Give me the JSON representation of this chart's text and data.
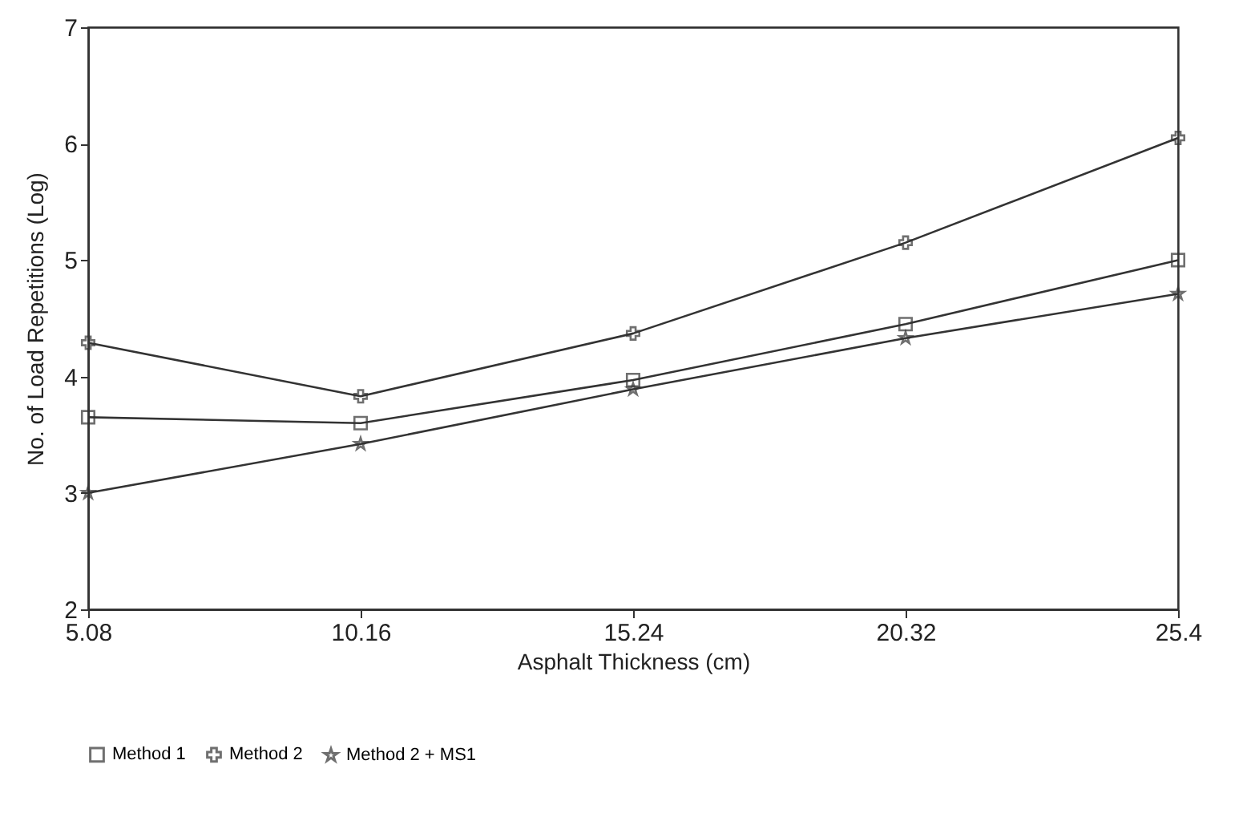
{
  "chart_data": {
    "type": "line",
    "xlabel": "Asphalt Thickness (cm)",
    "ylabel": "No. of Load Repetitions (Log)",
    "x": [
      5.08,
      10.16,
      15.24,
      20.32,
      25.4
    ],
    "xlim": [
      5.08,
      25.4
    ],
    "xticks": [
      5.08,
      10.16,
      15.24,
      20.32,
      25.4
    ],
    "ylim": [
      2,
      7
    ],
    "yticks": [
      2,
      3,
      4,
      5,
      6,
      7
    ],
    "grid": false,
    "legend": "bottom",
    "line_style": "solid",
    "series": [
      {
        "name": "Method 1",
        "color": "#333333",
        "marker": "square",
        "values": [
          3.65,
          3.6,
          3.97,
          4.45,
          5.0
        ]
      },
      {
        "name": "Method 2",
        "color": "#333333",
        "marker": "cross",
        "values": [
          4.29,
          3.83,
          4.37,
          5.15,
          6.05
        ]
      },
      {
        "name": "Method 2 + MS1",
        "color": "#333333",
        "marker": "star",
        "values": [
          3.0,
          3.42,
          3.89,
          4.33,
          4.71
        ]
      }
    ]
  }
}
